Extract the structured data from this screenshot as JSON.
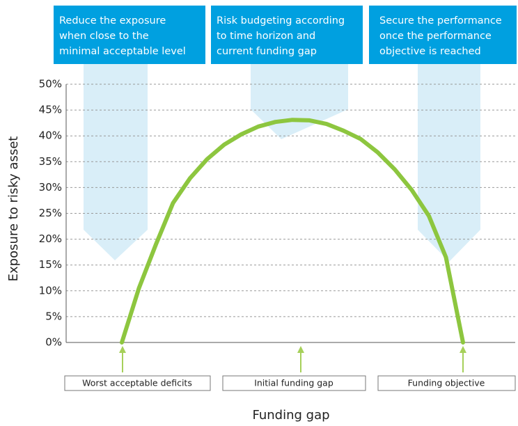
{
  "chart_data": {
    "type": "line",
    "ylabel": "Exposure to risky asset",
    "xlabel": "Funding gap",
    "top_annotations": [
      [
        "Reduce the exposure",
        "when close to the",
        "minimal  acceptable level"
      ],
      [
        "Risk budgeting according",
        "to time horizon and",
        "current funding gap"
      ],
      [
        "Secure the performance",
        "once the performance",
        "objective is reached"
      ]
    ],
    "bottom_annotations": [
      "Worst acceptable deficits",
      "Initial funding gap",
      "Funding objective"
    ],
    "categories": [
      null,
      null,
      null,
      null,
      null,
      null,
      null,
      null,
      null,
      null,
      null,
      null,
      null,
      null,
      null,
      null,
      null,
      null,
      null,
      null,
      null
    ],
    "series": [
      {
        "color": "#8dc63f",
        "values": [
          0,
          10.5,
          19,
          27,
          31.8,
          35.5,
          38.3,
          40.3,
          41.8,
          42.7,
          43.1,
          43.0,
          42.3,
          41,
          39.4,
          36.8,
          33.5,
          29.5,
          24.5,
          16.5,
          0
        ]
      }
    ],
    "ylim": [
      0,
      50
    ],
    "yticks": [
      {
        "value": 0,
        "label": "0%"
      },
      {
        "value": 5,
        "label": "5%"
      },
      {
        "value": 10,
        "label": "10%"
      },
      {
        "value": 15,
        "label": "15%"
      },
      {
        "value": 20,
        "label": "20%"
      },
      {
        "value": 25,
        "label": "25%"
      },
      {
        "value": 30,
        "label": "30%"
      },
      {
        "value": 35,
        "label": "35%"
      },
      {
        "value": 40,
        "label": "40%"
      },
      {
        "value": 45,
        "label": "45%"
      },
      {
        "value": 50,
        "label": "50%"
      }
    ],
    "grid": true
  }
}
